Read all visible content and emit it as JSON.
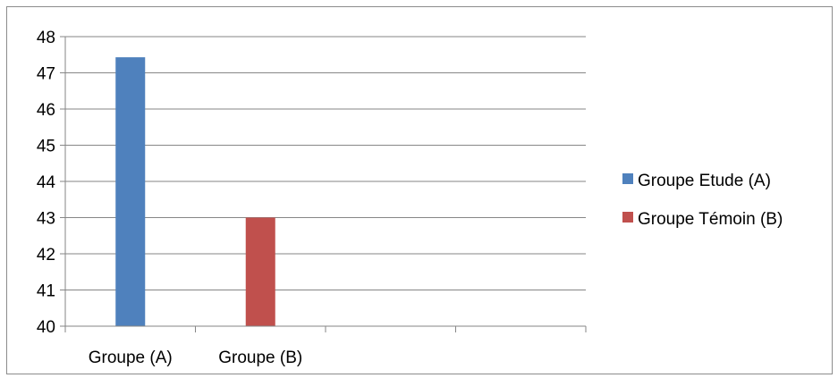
{
  "chart_data": {
    "type": "bar",
    "categories": [
      "Groupe (A)",
      "Groupe (B)",
      "",
      ""
    ],
    "series": [
      {
        "name": "Groupe Etude (A)",
        "color": "#4f81bd",
        "values": [
          47.43,
          null,
          null,
          null
        ]
      },
      {
        "name": "Groupe Témoin (B)",
        "color": "#c0504d",
        "values": [
          null,
          43.0,
          null,
          null
        ]
      }
    ],
    "ylim": [
      40,
      48
    ],
    "yticks": [
      40,
      41,
      42,
      43,
      44,
      45,
      46,
      47,
      48
    ],
    "grid": true,
    "legend": "right"
  }
}
